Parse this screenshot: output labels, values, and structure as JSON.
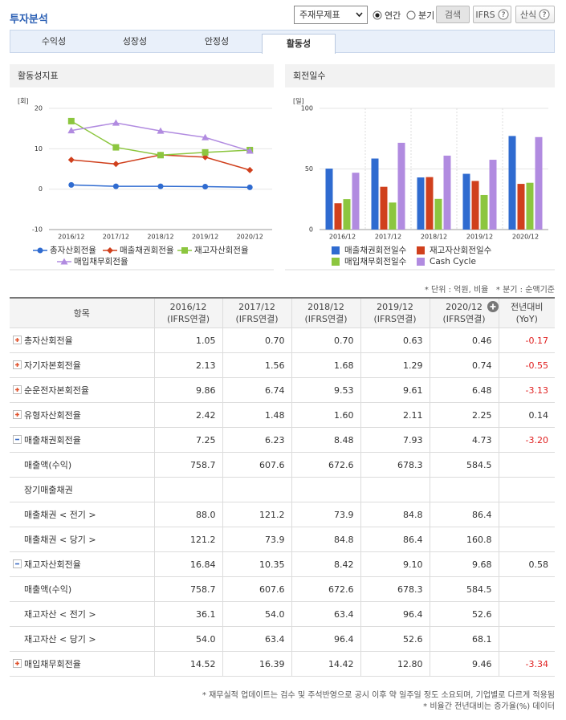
{
  "header": {
    "title": "투자분석",
    "select": "주재무제표",
    "radios": [
      "연간",
      "분기"
    ],
    "checked_radio": 0,
    "buttons": [
      "검색",
      "IFRS",
      "산식"
    ]
  },
  "tabs": [
    "수익성",
    "성장성",
    "안정성",
    "활동성"
  ],
  "active_tab": 3,
  "chart_data": [
    {
      "type": "line",
      "title": "활동성지표",
      "unit": "[회]",
      "categories": [
        "2016/12",
        "2017/12",
        "2018/12",
        "2019/12",
        "2020/12"
      ],
      "ylim": [
        -10,
        20
      ],
      "yticks": [
        -10,
        0,
        10,
        20
      ],
      "grid": true,
      "series": [
        {
          "name": "총자산회전율",
          "color": "#2f6bd0",
          "marker": "circle",
          "values": [
            1.05,
            0.7,
            0.7,
            0.63,
            0.46
          ]
        },
        {
          "name": "매출채권회전율",
          "color": "#d0401d",
          "marker": "diamond",
          "values": [
            7.25,
            6.23,
            8.48,
            7.93,
            4.73
          ]
        },
        {
          "name": "재고자산회전율",
          "color": "#8cc63f",
          "marker": "square",
          "values": [
            16.84,
            10.35,
            8.42,
            9.1,
            9.68
          ]
        },
        {
          "name": "매입채무회전율",
          "color": "#b18be0",
          "marker": "triangle",
          "values": [
            14.52,
            16.39,
            14.42,
            12.8,
            9.46
          ]
        }
      ]
    },
    {
      "type": "bar",
      "title": "회전일수",
      "unit": "[일]",
      "categories": [
        "2016/12",
        "2017/12",
        "2018/12",
        "2019/12",
        "2020/12"
      ],
      "ylim": [
        0,
        100
      ],
      "yticks": [
        0,
        50,
        100
      ],
      "grid": true,
      "series": [
        {
          "name": "매출채권회전일수",
          "color": "#2f6bd0",
          "values": [
            50.3,
            58.6,
            43.0,
            46.0,
            77.2
          ]
        },
        {
          "name": "재고자산회전일수",
          "color": "#d0401d",
          "values": [
            21.7,
            35.3,
            43.3,
            40.1,
            37.7
          ]
        },
        {
          "name": "매입채무회전일수",
          "color": "#8cc63f",
          "values": [
            25.1,
            22.3,
            25.3,
            28.5,
            38.6
          ]
        },
        {
          "name": "Cash Cycle",
          "color": "#b18be0",
          "values": [
            46.9,
            71.6,
            61.0,
            57.6,
            76.3
          ]
        }
      ]
    }
  ],
  "notes": [
    "* 단위 : 억원, 비율",
    "* 분기 : 순액기준"
  ],
  "table": {
    "columns": [
      [
        "항목"
      ],
      [
        "2016/12",
        "(IFRS연결)"
      ],
      [
        "2017/12",
        "(IFRS연결)"
      ],
      [
        "2018/12",
        "(IFRS연결)"
      ],
      [
        "2019/12",
        "(IFRS연결)"
      ],
      [
        "2020/12",
        "(IFRS연결)"
      ],
      [
        "전년대비",
        "(YoY)"
      ]
    ],
    "rows": [
      {
        "label": "총자산회전율",
        "icon": "plus",
        "values": [
          "1.05",
          "0.70",
          "0.70",
          "0.63",
          "0.46"
        ],
        "yoy": "-0.17"
      },
      {
        "label": "자기자본회전율",
        "icon": "plus",
        "values": [
          "2.13",
          "1.56",
          "1.68",
          "1.29",
          "0.74"
        ],
        "yoy": "-0.55"
      },
      {
        "label": "순운전자본회전율",
        "icon": "plus",
        "values": [
          "9.86",
          "6.74",
          "9.53",
          "9.61",
          "6.48"
        ],
        "yoy": "-3.13"
      },
      {
        "label": "유형자산회전율",
        "icon": "plus",
        "values": [
          "2.42",
          "1.48",
          "1.60",
          "2.11",
          "2.25"
        ],
        "yoy": "0.14"
      },
      {
        "label": "매출채권회전율",
        "icon": "minus",
        "values": [
          "7.25",
          "6.23",
          "8.48",
          "7.93",
          "4.73"
        ],
        "yoy": "-3.20"
      },
      {
        "label": "매출액(수익)",
        "values": [
          "758.7",
          "607.6",
          "672.6",
          "678.3",
          "584.5"
        ]
      },
      {
        "label": "장기매출채권"
      },
      {
        "label": "매출채권 < 전기 >",
        "values": [
          "88.0",
          "121.2",
          "73.9",
          "84.8",
          "86.4"
        ]
      },
      {
        "label": "매출채권 < 당기 >",
        "values": [
          "121.2",
          "73.9",
          "84.8",
          "86.4",
          "160.8"
        ]
      },
      {
        "label": "재고자산회전율",
        "icon": "minus",
        "values": [
          "16.84",
          "10.35",
          "8.42",
          "9.10",
          "9.68"
        ],
        "yoy": "0.58"
      },
      {
        "label": "매출액(수익)",
        "values": [
          "758.7",
          "607.6",
          "672.6",
          "678.3",
          "584.5"
        ]
      },
      {
        "label": "재고자산 < 전기 >",
        "values": [
          "36.1",
          "54.0",
          "63.4",
          "96.4",
          "52.6"
        ]
      },
      {
        "label": "재고자산 < 당기 >",
        "values": [
          "54.0",
          "63.4",
          "96.4",
          "52.6",
          "68.1"
        ]
      },
      {
        "label": "매입채무회전율",
        "icon": "plus",
        "values": [
          "14.52",
          "16.39",
          "14.42",
          "12.80",
          "9.46"
        ],
        "yoy": "-3.34"
      }
    ]
  },
  "footnotes": [
    "* 재무실적 업데이트는 검수 및 주석반영으로 공시 이후 약 일주일 정도 소요되며, 기업별로 다르게 적용됨",
    "* 비율간 전년대비는 증가율(%) 데이터"
  ]
}
